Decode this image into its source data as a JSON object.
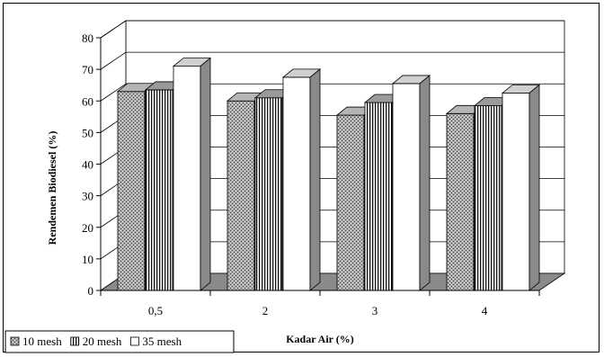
{
  "chart_data": {
    "type": "bar",
    "style": "3d-clustered-column",
    "title": "",
    "xlabel": "Kadar Air (%)",
    "ylabel": "Rendemen Biodiesel (%)",
    "categories": [
      "0,5",
      "2",
      "3",
      "4"
    ],
    "series": [
      {
        "name": "10 mesh",
        "values": [
          63,
          60,
          55.5,
          56
        ],
        "pattern": "dotted",
        "color": "#8c8c8c"
      },
      {
        "name": "20 mesh",
        "values": [
          63.5,
          61,
          59.5,
          58.5
        ],
        "pattern": "vertical-stripes",
        "color": "#7a7a7a"
      },
      {
        "name": "35 mesh",
        "values": [
          71,
          67.5,
          65.5,
          62.5
        ],
        "pattern": "solid",
        "color": "#ffffff"
      }
    ],
    "ylim": [
      0,
      80
    ],
    "yticks": [
      0,
      10,
      20,
      30,
      40,
      50,
      60,
      70,
      80
    ],
    "grid": true,
    "legend": "bottom-left"
  }
}
